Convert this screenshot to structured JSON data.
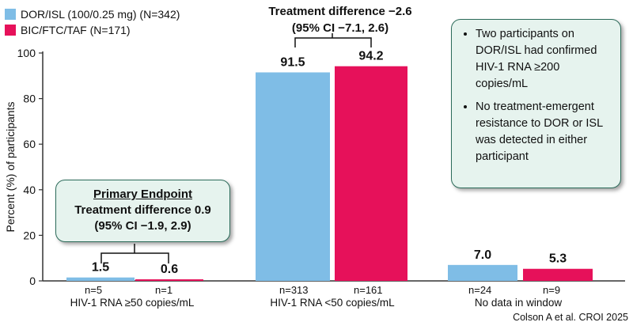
{
  "chart_data": {
    "type": "bar",
    "ylabel": "Percent (%) of participants",
    "ylim": [
      0,
      100
    ],
    "yticks": [
      0,
      20,
      40,
      60,
      80,
      100
    ],
    "categories": [
      "HIV-1 RNA ≥50 copies/mL",
      "HIV-1 RNA <50 copies/mL",
      "No data in window"
    ],
    "series": [
      {
        "name": "DOR/ISL (100/0.25 mg) (N=342)",
        "color": "#7fbde6",
        "values": [
          1.5,
          91.5,
          7.0
        ],
        "labels": [
          "1.5",
          "91.5",
          "7.0"
        ],
        "counts": [
          "n=5",
          "n=313",
          "n=24"
        ]
      },
      {
        "name": "BIC/FTC/TAF (N=171)",
        "color": "#e6115a",
        "values": [
          0.6,
          94.2,
          5.3
        ],
        "labels": [
          "0.6",
          "94.2",
          "5.3"
        ],
        "counts": [
          "n=1",
          "n=161",
          "n=9"
        ]
      }
    ]
  },
  "primary_endpoint": {
    "title": "Primary Endpoint",
    "line1": "Treatment difference 0.9",
    "line2": "(95% CI −1.9, 2.9)"
  },
  "treatment_difference_mid": {
    "line1": "Treatment difference −2.6",
    "line2": "(95% CI −7.1, 2.6)"
  },
  "notes": [
    "Two participants on DOR/ISL had confirmed HIV-1 RNA ≥200 copies/mL",
    "No treatment-emergent resistance to DOR or ISL was detected in either participant"
  ],
  "citation": "Colson A et al. CROI 2025"
}
